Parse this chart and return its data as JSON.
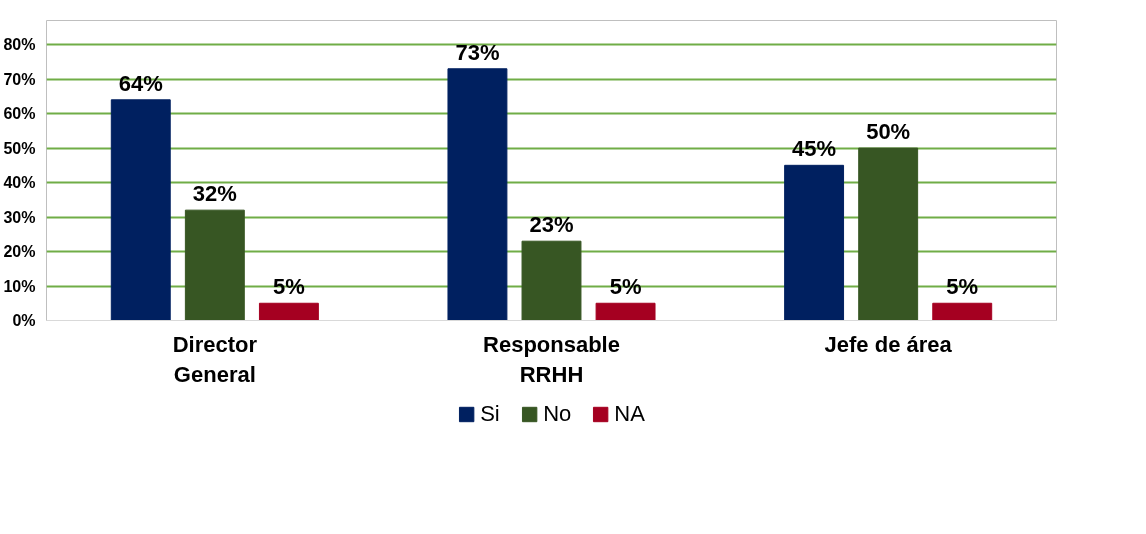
{
  "chart_data": {
    "type": "bar",
    "categories": [
      "Director\nGeneral",
      "Responsable\nRRHH",
      "Jefe de área"
    ],
    "series": [
      {
        "name": "Si",
        "color": "#002060",
        "values": [
          64,
          73,
          45
        ],
        "value_labels": [
          "64%",
          "73%",
          "45%"
        ]
      },
      {
        "name": "No",
        "color": "#375623",
        "values": [
          32,
          23,
          50
        ],
        "value_labels": [
          "32%",
          "23%",
          "50%"
        ]
      },
      {
        "name": "NA",
        "color": "#a50021",
        "values": [
          5,
          5,
          5
        ],
        "value_labels": [
          "5%",
          "5%",
          "5%"
        ]
      }
    ],
    "ylim": [
      0,
      87
    ],
    "yticks": [
      {
        "value": 0,
        "label": "0%"
      },
      {
        "value": 10,
        "label": "10%"
      },
      {
        "value": 20,
        "label": "20%"
      },
      {
        "value": 30,
        "label": "30%"
      },
      {
        "value": 40,
        "label": "40%"
      },
      {
        "value": 50,
        "label": "50%"
      },
      {
        "value": 60,
        "label": "60%"
      },
      {
        "value": 70,
        "label": "70%"
      },
      {
        "value": 80,
        "label": "80%"
      }
    ],
    "grid": "y",
    "legend": "bottom"
  }
}
